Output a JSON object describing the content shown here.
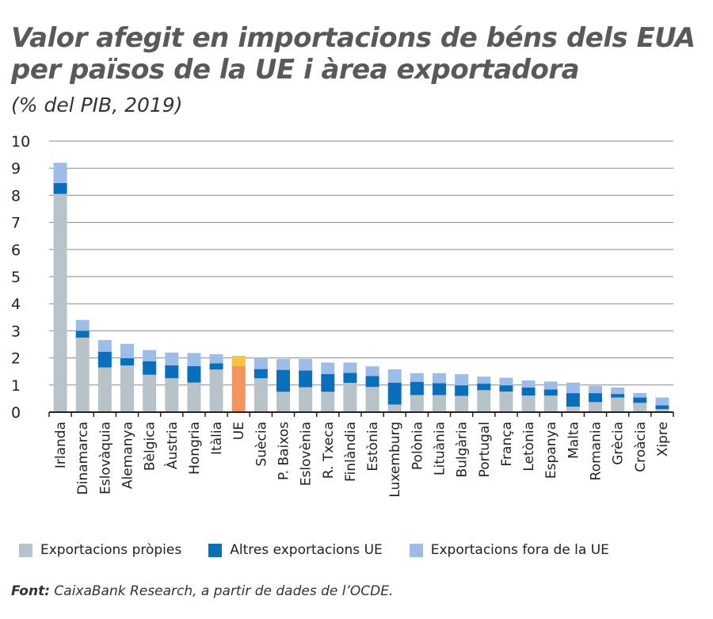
{
  "chart_data": {
    "type": "bar",
    "stacked": true,
    "title": "Valor afegit en importacions de béns dels EUA per països de la UE i àrea exportadora",
    "subtitle": "(% del PIB, 2019)",
    "ylim": [
      0,
      10
    ],
    "yticks": [
      "0",
      "1",
      "2",
      "3",
      "4",
      "5",
      "6",
      "7",
      "8",
      "9",
      "10"
    ],
    "grid": true,
    "legend_position": "bottom",
    "categories": [
      "Irlanda",
      "Dinamarca",
      "Eslovàquia",
      "Alemanya",
      "Bèlgica",
      "Àustria",
      "Hongria",
      "Itàlia",
      "UE",
      "Suècia",
      "P. Baixos",
      "Eslovènia",
      "R. Txeca",
      "Finlàndia",
      "Estònia",
      "Luxemburg",
      "Polònia",
      "Lituània",
      "Bulgària",
      "Portugal",
      "França",
      "Letònia",
      "Espanya",
      "Malta",
      "Romania",
      "Grècia",
      "Croàcia",
      "Xipre"
    ],
    "highlight_category": "UE",
    "series": [
      {
        "name": "Exportacions pròpies",
        "color": "#b7c3c8",
        "highlight_color": "#f4935e",
        "values": [
          8.05,
          2.75,
          1.65,
          1.72,
          1.38,
          1.25,
          1.09,
          1.57,
          1.7,
          1.25,
          0.75,
          0.92,
          0.75,
          1.08,
          0.93,
          0.28,
          0.63,
          0.63,
          0.6,
          0.81,
          0.76,
          0.61,
          0.61,
          0.2,
          0.37,
          0.54,
          0.34,
          0.11
        ]
      },
      {
        "name": "Altres exportacions UE",
        "color": "#0a6fba",
        "highlight_color": "#f4935e",
        "values": [
          0.4,
          0.25,
          0.58,
          0.27,
          0.5,
          0.48,
          0.61,
          0.23,
          0,
          0.34,
          0.81,
          0.62,
          0.66,
          0.37,
          0.4,
          0.81,
          0.49,
          0.44,
          0.39,
          0.24,
          0.23,
          0.3,
          0.23,
          0.5,
          0.33,
          0.13,
          0.2,
          0.14
        ]
      },
      {
        "name": "Exportacions fora de la UE",
        "color": "#9dbde8",
        "highlight_color": "#f9c33b",
        "values": [
          0.75,
          0.4,
          0.43,
          0.53,
          0.41,
          0.47,
          0.48,
          0.34,
          0.38,
          0.41,
          0.4,
          0.42,
          0.42,
          0.38,
          0.36,
          0.49,
          0.32,
          0.37,
          0.41,
          0.26,
          0.28,
          0.26,
          0.29,
          0.39,
          0.27,
          0.24,
          0.17,
          0.29
        ]
      }
    ]
  },
  "source": {
    "label": "Font:",
    "text": " CaixaBank Research, a partir de dades de l’OCDE."
  }
}
